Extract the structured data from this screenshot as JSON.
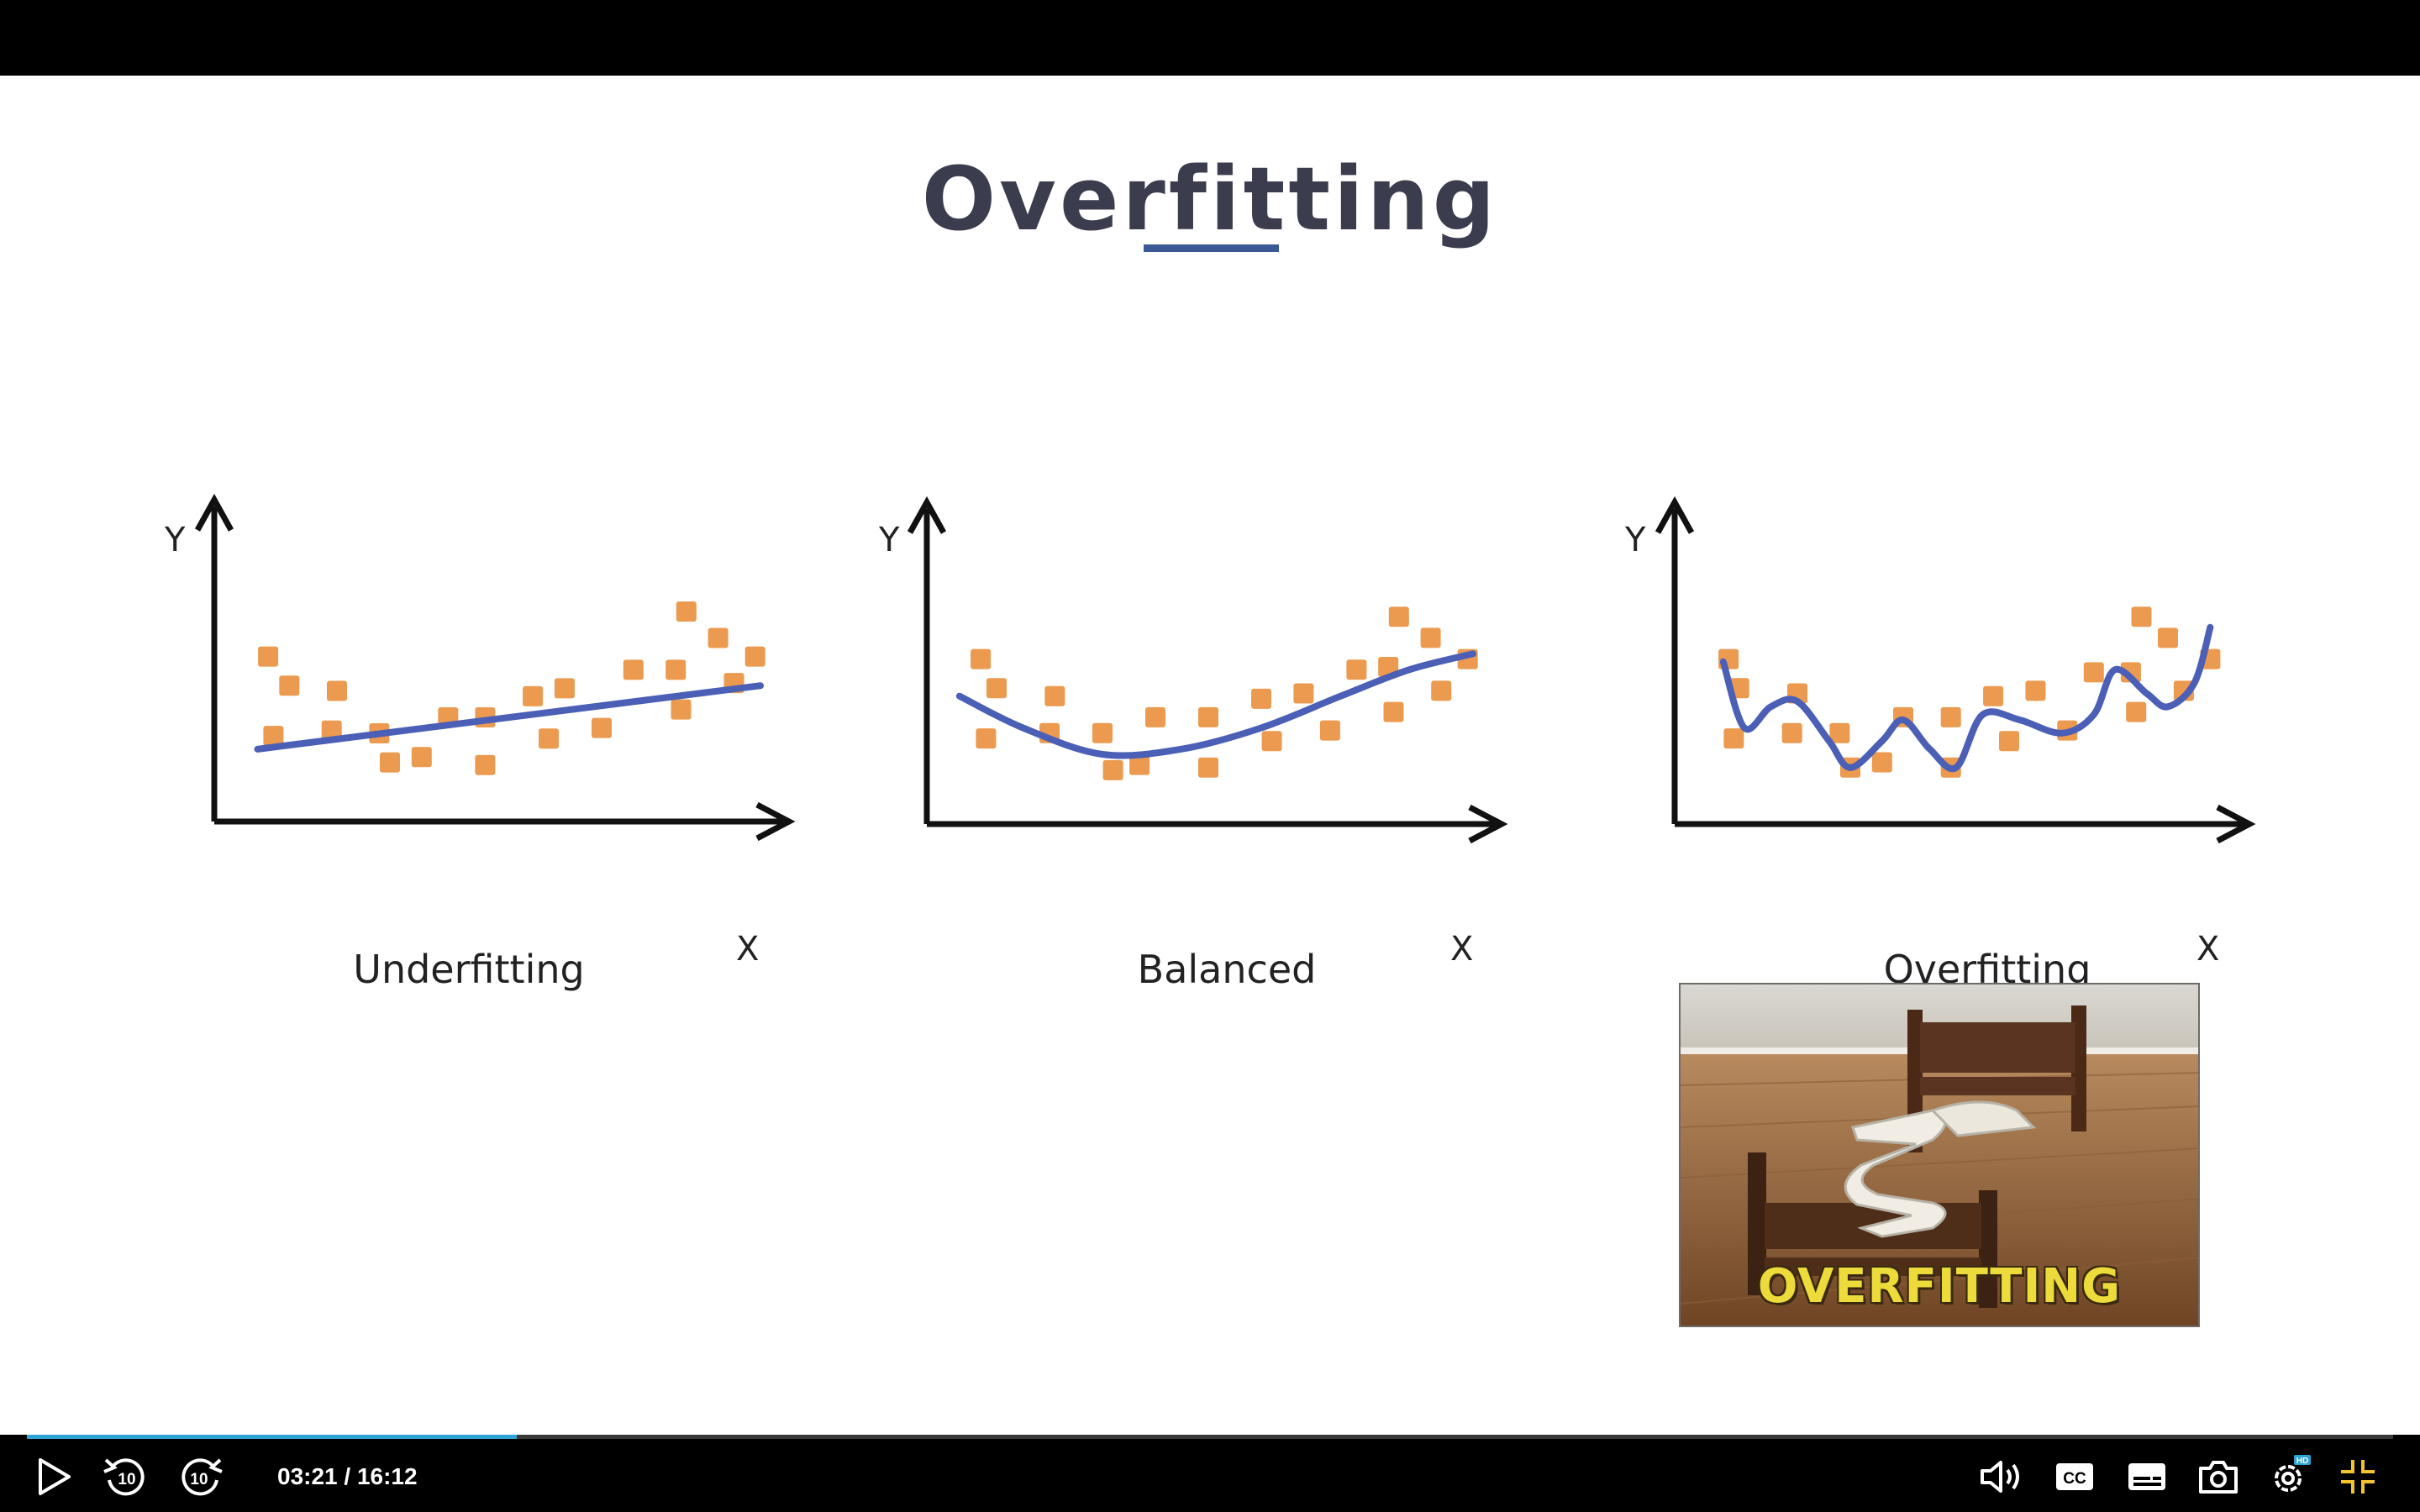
{
  "slide": {
    "title": "Overfitting"
  },
  "charts": [
    {
      "name": "underfitting",
      "label": "Underfitting",
      "y_label": "Y",
      "x_label": "X",
      "points": [
        [
          0.07,
          0.56
        ],
        [
          0.11,
          0.45
        ],
        [
          0.08,
          0.26
        ],
        [
          0.2,
          0.43
        ],
        [
          0.19,
          0.28
        ],
        [
          0.28,
          0.27
        ],
        [
          0.3,
          0.16
        ],
        [
          0.36,
          0.18
        ],
        [
          0.41,
          0.33
        ],
        [
          0.48,
          0.15
        ],
        [
          0.48,
          0.33
        ],
        [
          0.57,
          0.41
        ],
        [
          0.6,
          0.25
        ],
        [
          0.63,
          0.44
        ],
        [
          0.7,
          0.29
        ],
        [
          0.76,
          0.51
        ],
        [
          0.84,
          0.51
        ],
        [
          0.85,
          0.36
        ],
        [
          0.86,
          0.73
        ],
        [
          0.92,
          0.63
        ],
        [
          0.95,
          0.46
        ],
        [
          0.99,
          0.56
        ]
      ],
      "curve": [
        [
          0.05,
          0.21
        ],
        [
          1.0,
          0.45
        ]
      ]
    },
    {
      "name": "balanced",
      "label": "Balanced",
      "y_label": "Y",
      "x_label": "X",
      "points": [
        [
          0.07,
          0.56
        ],
        [
          0.1,
          0.45
        ],
        [
          0.08,
          0.26
        ],
        [
          0.21,
          0.42
        ],
        [
          0.2,
          0.28
        ],
        [
          0.3,
          0.28
        ],
        [
          0.32,
          0.14
        ],
        [
          0.37,
          0.16
        ],
        [
          0.4,
          0.34
        ],
        [
          0.5,
          0.34
        ],
        [
          0.5,
          0.15
        ],
        [
          0.6,
          0.41
        ],
        [
          0.62,
          0.25
        ],
        [
          0.68,
          0.43
        ],
        [
          0.73,
          0.29
        ],
        [
          0.78,
          0.52
        ],
        [
          0.84,
          0.53
        ],
        [
          0.85,
          0.36
        ],
        [
          0.86,
          0.72
        ],
        [
          0.92,
          0.64
        ],
        [
          0.94,
          0.44
        ],
        [
          0.99,
          0.56
        ]
      ],
      "curve": [
        [
          0.03,
          0.42
        ],
        [
          0.15,
          0.3
        ],
        [
          0.3,
          0.2
        ],
        [
          0.45,
          0.22
        ],
        [
          0.6,
          0.3
        ],
        [
          0.75,
          0.42
        ],
        [
          0.88,
          0.52
        ],
        [
          1.0,
          0.58
        ]
      ]
    },
    {
      "name": "overfitting",
      "label": "Overfitting",
      "y_label": "Y",
      "x_label": "X",
      "points": [
        [
          0.07,
          0.56
        ],
        [
          0.09,
          0.45
        ],
        [
          0.08,
          0.26
        ],
        [
          0.2,
          0.43
        ],
        [
          0.19,
          0.28
        ],
        [
          0.28,
          0.28
        ],
        [
          0.3,
          0.15
        ],
        [
          0.36,
          0.17
        ],
        [
          0.4,
          0.34
        ],
        [
          0.49,
          0.34
        ],
        [
          0.49,
          0.15
        ],
        [
          0.57,
          0.42
        ],
        [
          0.6,
          0.25
        ],
        [
          0.65,
          0.44
        ],
        [
          0.71,
          0.29
        ],
        [
          0.76,
          0.51
        ],
        [
          0.83,
          0.51
        ],
        [
          0.84,
          0.36
        ],
        [
          0.85,
          0.72
        ],
        [
          0.9,
          0.64
        ],
        [
          0.93,
          0.44
        ],
        [
          0.98,
          0.56
        ]
      ],
      "curve": [
        [
          0.06,
          0.55
        ],
        [
          0.1,
          0.3
        ],
        [
          0.15,
          0.38
        ],
        [
          0.2,
          0.4
        ],
        [
          0.26,
          0.25
        ],
        [
          0.3,
          0.15
        ],
        [
          0.36,
          0.25
        ],
        [
          0.4,
          0.33
        ],
        [
          0.45,
          0.22
        ],
        [
          0.5,
          0.15
        ],
        [
          0.55,
          0.35
        ],
        [
          0.62,
          0.33
        ],
        [
          0.7,
          0.28
        ],
        [
          0.76,
          0.35
        ],
        [
          0.8,
          0.52
        ],
        [
          0.86,
          0.43
        ],
        [
          0.9,
          0.38
        ],
        [
          0.95,
          0.47
        ],
        [
          0.98,
          0.68
        ]
      ]
    }
  ],
  "photo": {
    "caption": "OVERFITTING"
  },
  "player": {
    "time": "03:21 / 16:12",
    "progress": 0.207,
    "buttons": {
      "rewind": "10",
      "forward": "10",
      "hd_badge": "HD"
    }
  },
  "colors": {
    "points": "#eb9a4f",
    "curve": "#4a5fb5",
    "axis": "#111111",
    "progress": "#2ea3d5"
  }
}
